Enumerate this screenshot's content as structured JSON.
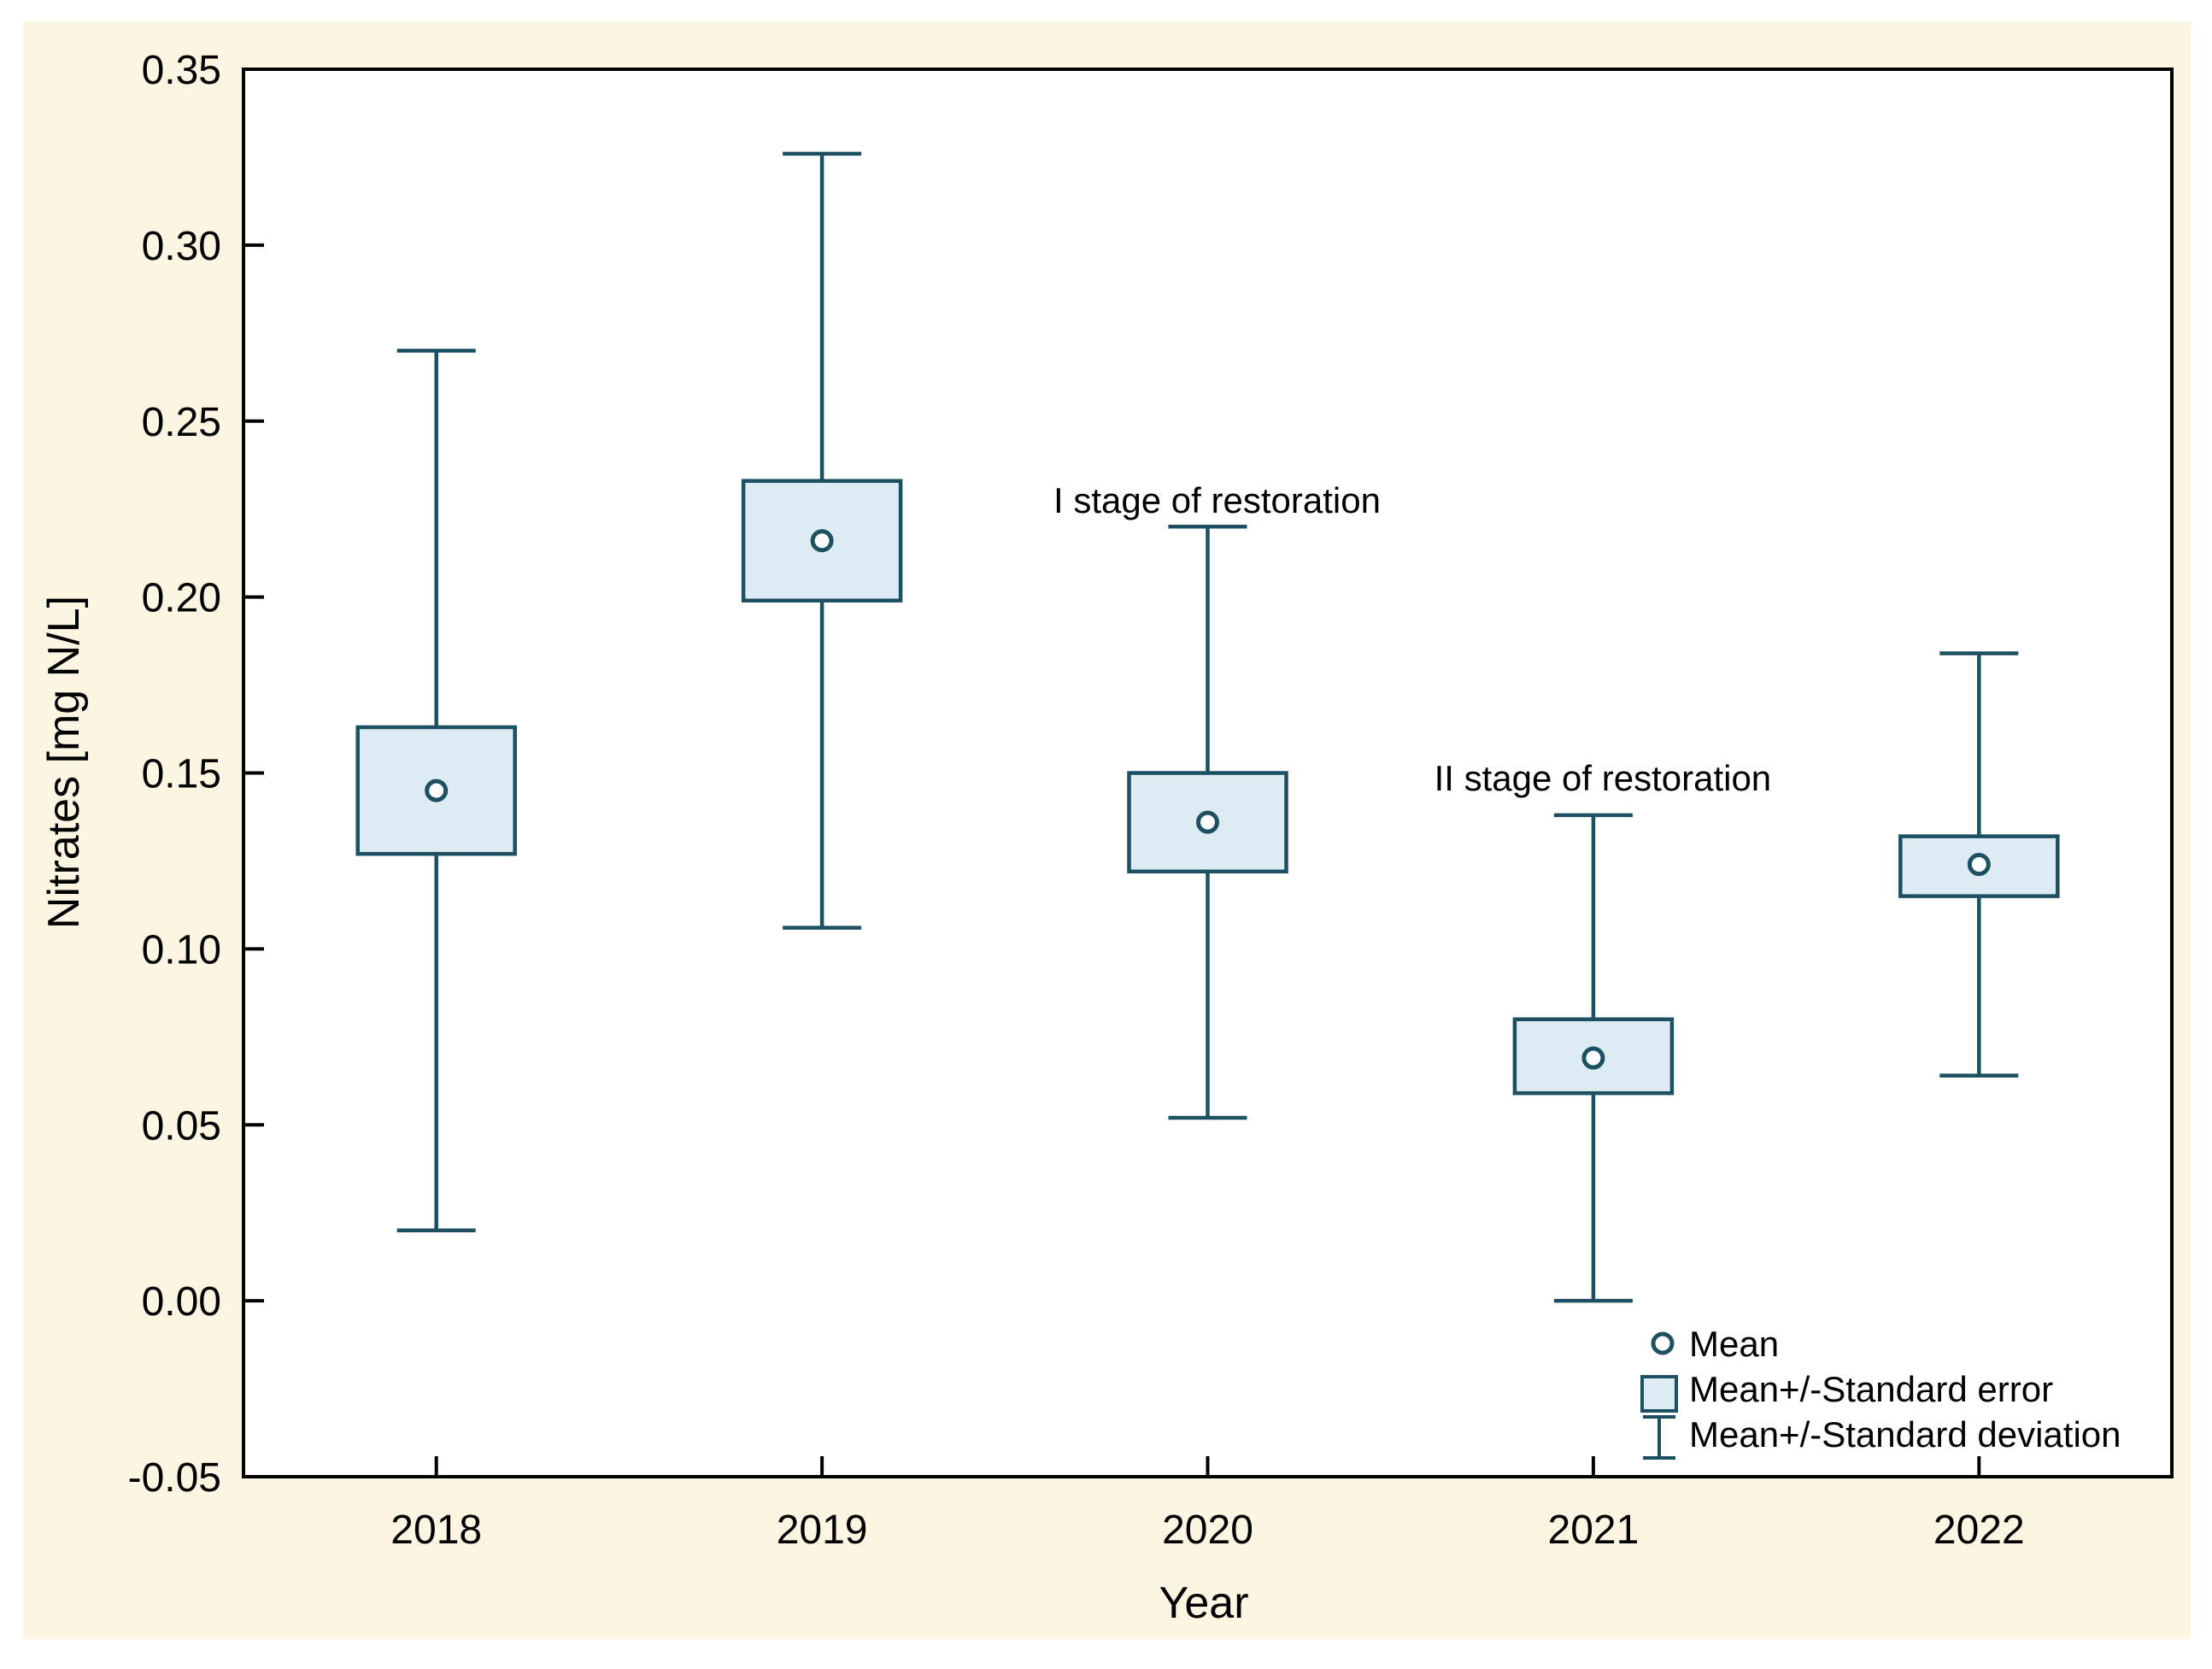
{
  "canvas_background": "#fcf5e2",
  "chart_data": {
    "type": "box",
    "title": "",
    "xlabel": "Year",
    "ylabel": "Nitrates [mg N/L]",
    "categories": [
      "2018",
      "2019",
      "2020",
      "2021",
      "2022"
    ],
    "ylim": [
      -0.05,
      0.35
    ],
    "ytick_step": 0.05,
    "ytick_labels": [
      "0.35",
      "0.30",
      "0.25",
      "0.20",
      "0.15",
      "0.10",
      "0.05",
      "0.00",
      "-0.05"
    ],
    "grid": false,
    "series": [
      {
        "year": "2018",
        "mean": 0.145,
        "se_low": 0.127,
        "se_high": 0.163,
        "sd_low": 0.02,
        "sd_high": 0.27
      },
      {
        "year": "2019",
        "mean": 0.216,
        "se_low": 0.199,
        "se_high": 0.233,
        "sd_low": 0.106,
        "sd_high": 0.326
      },
      {
        "year": "2020",
        "mean": 0.136,
        "se_low": 0.122,
        "se_high": 0.15,
        "sd_low": 0.052,
        "sd_high": 0.22
      },
      {
        "year": "2021",
        "mean": 0.069,
        "se_low": 0.059,
        "se_high": 0.08,
        "sd_low": 0.0,
        "sd_high": 0.138
      },
      {
        "year": "2022",
        "mean": 0.124,
        "se_low": 0.115,
        "se_high": 0.132,
        "sd_low": 0.064,
        "sd_high": 0.184
      }
    ],
    "annotations": [
      {
        "text": "I stage of restoration",
        "category": "2020",
        "y_value": 0.233
      },
      {
        "text": "II stage of restoration",
        "category": "2021",
        "y_value": 0.154
      }
    ],
    "legend": {
      "position": "bottom-right-inside",
      "items": [
        {
          "marker": "circle",
          "label": "Mean"
        },
        {
          "marker": "box",
          "label": "Mean+/-Standard error"
        },
        {
          "marker": "whisker",
          "label": "Mean+/-Standard deviation"
        }
      ]
    },
    "colors": {
      "series_stroke": "#1c5062",
      "series_fill": "#ddecf2",
      "mean_fill": "#ffffff",
      "frame": "#000000",
      "text": "#000000",
      "plot_bg": "#ffffff",
      "canvas_bg": "#fcf5e2"
    }
  }
}
